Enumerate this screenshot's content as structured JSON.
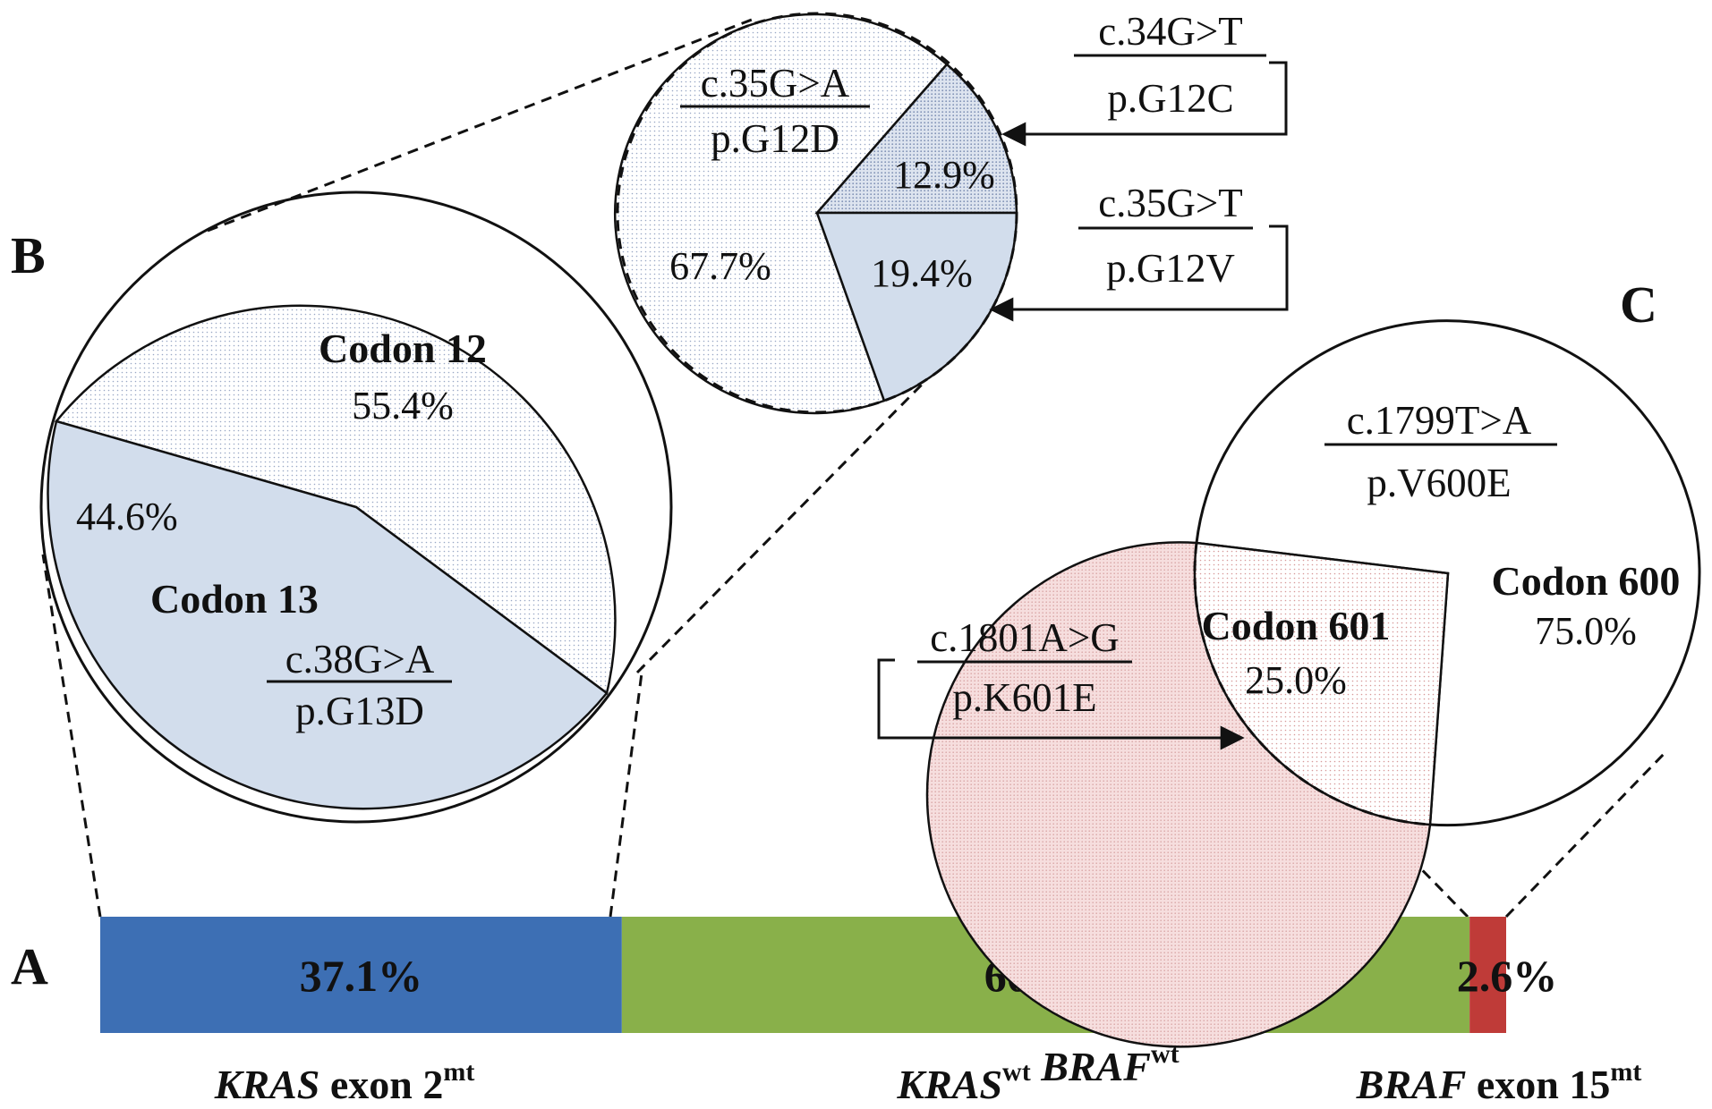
{
  "panels": {
    "a": "A",
    "b": "B",
    "c": "C"
  },
  "colors": {
    "kras": "#3d6fb4",
    "wt": "#89b04a",
    "braf": "#bf3b38",
    "light_blue": "#d2ddec",
    "dot_blue": "#9aa8c6",
    "light_pink": "#f6dede",
    "dot_pink": "#d79a9a"
  },
  "chart_data": [
    {
      "id": "A",
      "type": "bar",
      "stacked": true,
      "categories": [
        "KRAS exon 2mt",
        "KRASwt BRAFwt",
        "BRAF exon 15mt"
      ],
      "values": [
        37.1,
        60.3,
        2.6
      ],
      "value_labels": [
        "37.1%",
        "60.3%",
        "2.6%"
      ],
      "category_labels": [
        {
          "parts": [
            {
              "t": "KRAS",
              "i": true
            },
            {
              "t": " exon 2"
            }
          ],
          "sup": "mt"
        },
        {
          "parts": [
            {
              "t": "KRAS",
              "i": true
            }
          ],
          "sup": "wt",
          "parts2": [
            {
              "t": " BRAF",
              "i": true
            }
          ],
          "sup2": "wt"
        },
        {
          "parts": [
            {
              "t": "BRAF",
              "i": true
            },
            {
              "t": " exon 15"
            }
          ],
          "sup": "mt"
        }
      ]
    },
    {
      "id": "B",
      "type": "pie",
      "labels": [
        "Codon 12",
        "Codon 13"
      ],
      "values": [
        55.4,
        44.6
      ],
      "value_labels": [
        "55.4%",
        "44.6%"
      ],
      "annotations": {
        "codon13_mutation": "c.38G>A",
        "codon13_protein": "p.G13D"
      }
    },
    {
      "id": "B-detail",
      "type": "pie",
      "labels": [
        "p.G12D",
        "p.G12C",
        "p.G12V"
      ],
      "mutations": [
        "c.35G>A",
        "c.34G>T",
        "c.35G>T"
      ],
      "values": [
        67.7,
        12.9,
        19.4
      ],
      "value_labels": [
        "67.7%",
        "12.9%",
        "19.4%"
      ]
    },
    {
      "id": "C",
      "type": "pie",
      "labels": [
        "Codon 600",
        "Codon 601"
      ],
      "values": [
        75.0,
        25.0
      ],
      "value_labels": [
        "75.0%",
        "25.0%"
      ],
      "mutations": [
        {
          "c": "c.1799T>A",
          "p": "p.V600E"
        },
        {
          "c": "c.1801A>G",
          "p": "p.K601E"
        }
      ]
    }
  ]
}
